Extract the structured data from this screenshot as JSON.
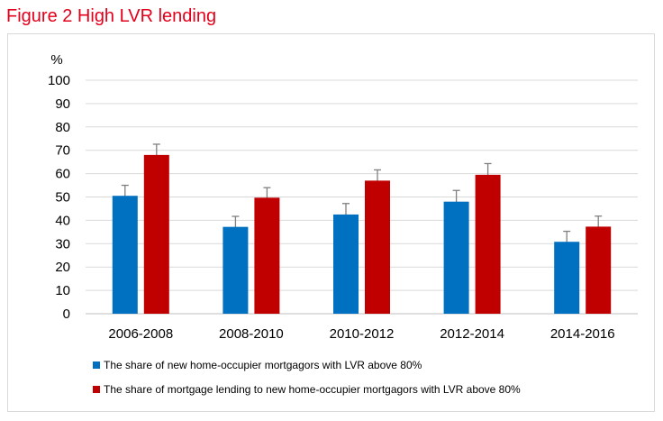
{
  "figure_title": "Figure 2 High LVR lending",
  "colors": {
    "title": "#e3001b",
    "series1": "#0070c0",
    "series2": "#c00000",
    "grid": "#d9d9d9",
    "error": "#7f7f7f"
  },
  "chart_data": {
    "type": "bar",
    "title": "Figure 2 High LVR lending",
    "ylabel": "%",
    "xlabel": "",
    "ylim": [
      0,
      100
    ],
    "yticks": [
      0,
      10,
      20,
      30,
      40,
      50,
      60,
      70,
      80,
      90,
      100
    ],
    "grid": true,
    "legend_position": "bottom",
    "categories": [
      "2006-2008",
      "2008-2010",
      "2010-2012",
      "2012-2014",
      "2014-2016"
    ],
    "series": [
      {
        "name": "The share of new home-occupier mortgagors with LVR above 80%",
        "color": "#0070c0",
        "values": [
          50.5,
          37.2,
          42.5,
          48.0,
          30.8
        ],
        "error_low": [
          46.0,
          32.8,
          38.0,
          43.2,
          26.3
        ],
        "error_high": [
          55.0,
          41.7,
          47.2,
          52.8,
          35.3
        ]
      },
      {
        "name": "The share of mortgage lending to new home-occupier mortgagors with LVR above 80%",
        "color": "#c00000",
        "values": [
          68.0,
          49.7,
          57.0,
          59.5,
          37.3
        ],
        "error_low": [
          63.4,
          45.3,
          52.2,
          54.6,
          32.7
        ],
        "error_high": [
          72.6,
          54.0,
          61.6,
          64.3,
          41.8
        ]
      }
    ]
  }
}
